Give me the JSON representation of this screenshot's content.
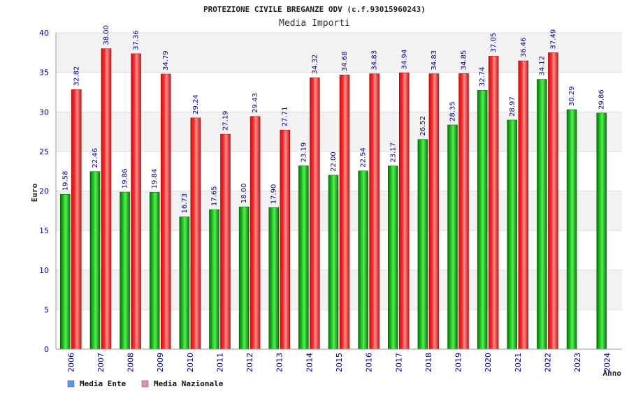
{
  "chart_data": {
    "type": "bar",
    "title": "PROTEZIONE CIVILE BREGANZE ODV (c.f.93015960243)",
    "subtitle": "Media Importi",
    "xlabel": "Anno",
    "ylabel": "Euro",
    "ylim": [
      0,
      40
    ],
    "yticks": [
      "0",
      "5",
      "10",
      "15",
      "20",
      "25",
      "30",
      "35",
      "40"
    ],
    "categories": [
      "2006",
      "2007",
      "2008",
      "2009",
      "2010",
      "2011",
      "2012",
      "2013",
      "2014",
      "2015",
      "2016",
      "2017",
      "2018",
      "2019",
      "2020",
      "2021",
      "2022",
      "2023",
      "2024"
    ],
    "series": [
      {
        "name": "Media Ente",
        "color": "#22aa22",
        "values": [
          19.58,
          22.46,
          19.86,
          19.84,
          16.73,
          17.65,
          18.0,
          17.9,
          23.19,
          22.0,
          22.54,
          23.17,
          26.52,
          28.35,
          32.74,
          28.97,
          34.12,
          30.29,
          29.86
        ],
        "labels": [
          "19.58",
          "22.46",
          "19.86",
          "19.84",
          "16.73",
          "17.65",
          "18.00",
          "17.90",
          "23.19",
          "22.00",
          "22.54",
          "23.17",
          "26.52",
          "28.35",
          "32.74",
          "28.97",
          "34.12",
          "30.29",
          "29.86"
        ]
      },
      {
        "name": "Media Nazionale",
        "color": "#ee2222",
        "values": [
          32.82,
          38.0,
          37.36,
          34.79,
          29.24,
          27.19,
          29.43,
          27.71,
          34.32,
          34.68,
          34.83,
          34.94,
          34.83,
          34.85,
          37.05,
          36.46,
          37.49,
          null,
          null
        ],
        "labels": [
          "32.82",
          "38.00",
          "37.36",
          "34.79",
          "29.24",
          "27.19",
          "29.43",
          "27.71",
          "34.32",
          "34.68",
          "34.83",
          "34.94",
          "34.83",
          "34.85",
          "37.05",
          "36.46",
          "37.49",
          "",
          ""
        ]
      }
    ],
    "legend": {
      "placement": "bottom-left",
      "items": [
        {
          "label": "Media Ente",
          "swatch_color": "#5599ee"
        },
        {
          "label": "Media Nazionale",
          "swatch_color": "#ee88bb"
        }
      ]
    },
    "grid": true,
    "band_colors": [
      "#f2f2f2",
      "#ffffff"
    ]
  }
}
